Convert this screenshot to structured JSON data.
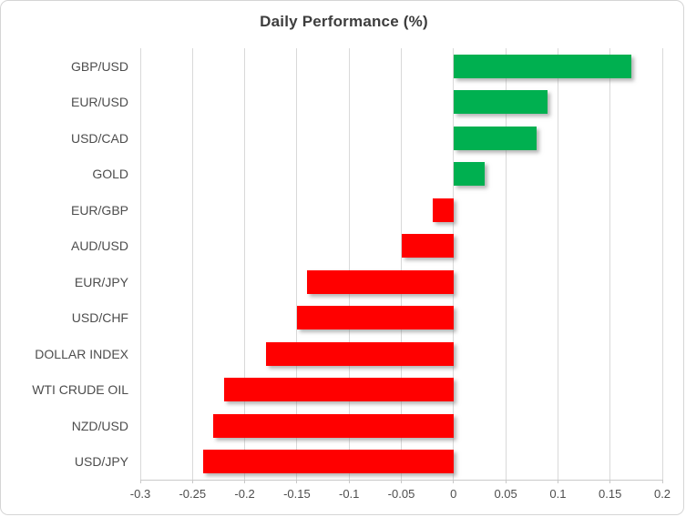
{
  "chart_data": {
    "type": "bar",
    "orientation": "horizontal",
    "title": "Daily Performance (%)",
    "categories": [
      "GBP/USD",
      "EUR/USD",
      "USD/CAD",
      "GOLD",
      "EUR/GBP",
      "AUD/USD",
      "EUR/JPY",
      "USD/CHF",
      "DOLLAR INDEX",
      "WTI CRUDE OIL",
      "NZD/USD",
      "USD/JPY"
    ],
    "values": [
      0.17,
      0.09,
      0.08,
      0.03,
      -0.02,
      -0.05,
      -0.14,
      -0.15,
      -0.18,
      -0.22,
      -0.23,
      -0.24
    ],
    "xlim": [
      -0.3,
      0.2
    ],
    "x_ticks": [
      -0.3,
      -0.25,
      -0.2,
      -0.15,
      -0.1,
      -0.05,
      0,
      0.05,
      0.1,
      0.15,
      0.2
    ],
    "x_tick_labels": [
      "-0.3",
      "-0.25",
      "-0.2",
      "-0.15",
      "-0.1",
      "-0.05",
      "0",
      "0.05",
      "0.1",
      "0.15",
      "0.2"
    ],
    "grid": true,
    "legend": false,
    "xlabel": "",
    "ylabel": "",
    "colors": {
      "positive": "#00B050",
      "negative": "#FF0000",
      "gridline": "#D9D9D9",
      "title_text": "#3D3D3D",
      "label_text": "#4D4D4D",
      "frame_border": "#D5D5D5"
    }
  }
}
